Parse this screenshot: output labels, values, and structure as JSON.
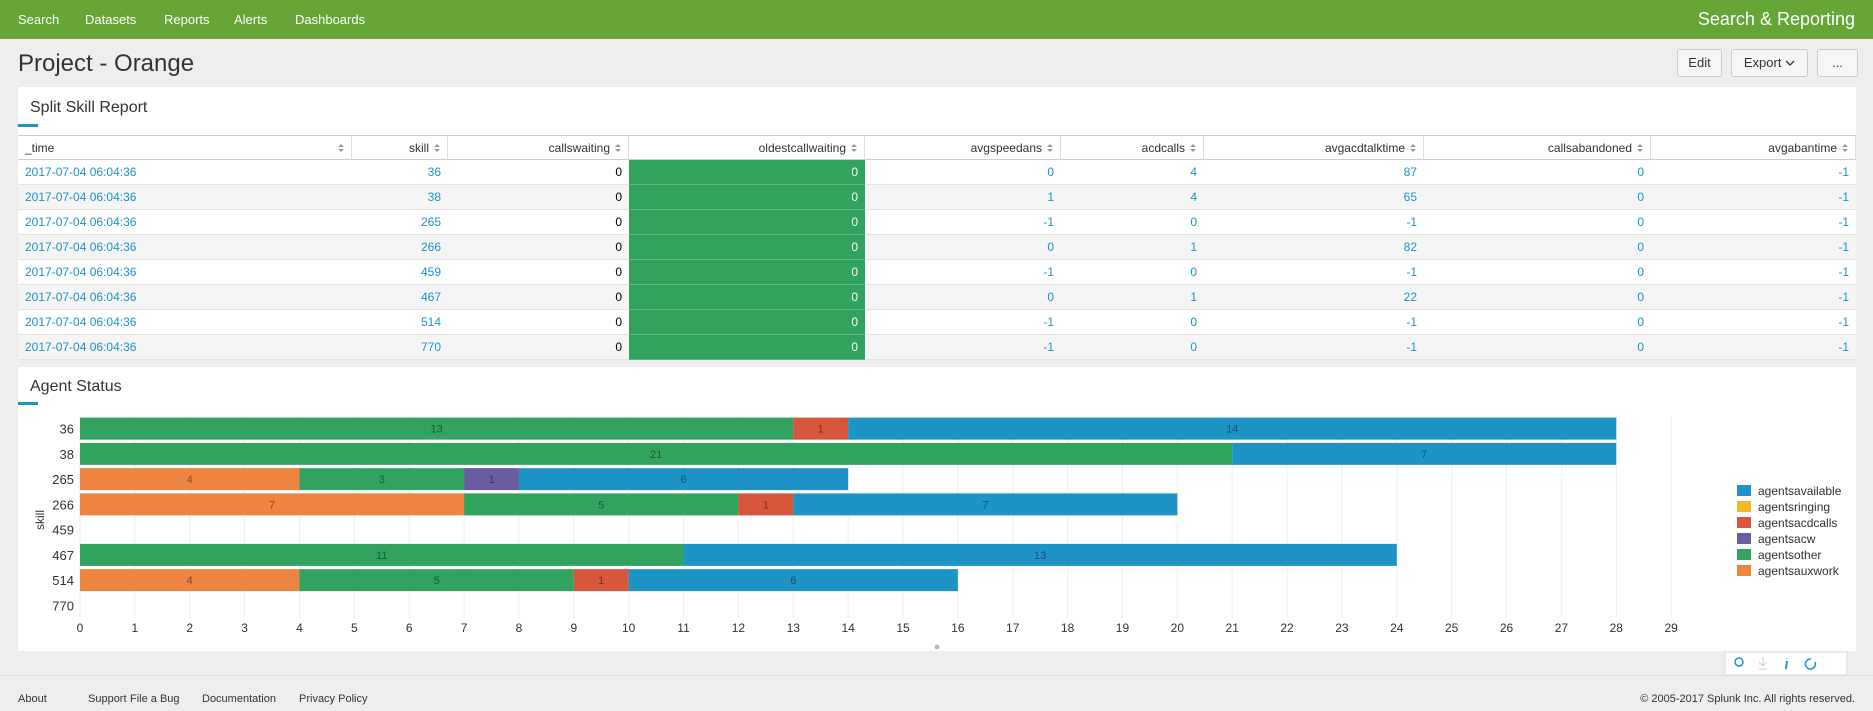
{
  "nav": {
    "items": [
      "Search",
      "Datasets",
      "Reports",
      "Alerts",
      "Dashboards"
    ],
    "app_title": "Search & Reporting"
  },
  "page": {
    "title": "Project - Orange",
    "buttons": [
      "Edit",
      "Export",
      "..."
    ]
  },
  "table_panel": {
    "title": "Split Skill Report",
    "columns": [
      "_time",
      "skill",
      "callswaiting",
      "oldestcallwaiting",
      "avgspeedans",
      "acdcalls",
      "avgacdtalktime",
      "callsabandoned",
      "avgabantime"
    ],
    "rows": [
      [
        "2017-07-04 06:04:36",
        36,
        0,
        0,
        0,
        4,
        87,
        0,
        -1
      ],
      [
        "2017-07-04 06:04:36",
        38,
        0,
        0,
        1,
        4,
        65,
        0,
        -1
      ],
      [
        "2017-07-04 06:04:36",
        265,
        0,
        0,
        -1,
        0,
        -1,
        0,
        -1
      ],
      [
        "2017-07-04 06:04:36",
        266,
        0,
        0,
        0,
        1,
        82,
        0,
        -1
      ],
      [
        "2017-07-04 06:04:36",
        459,
        0,
        0,
        -1,
        0,
        -1,
        0,
        -1
      ],
      [
        "2017-07-04 06:04:36",
        467,
        0,
        0,
        0,
        1,
        22,
        0,
        -1
      ],
      [
        "2017-07-04 06:04:36",
        514,
        0,
        0,
        -1,
        0,
        -1,
        0,
        -1
      ],
      [
        "2017-07-04 06:04:36",
        770,
        0,
        0,
        -1,
        0,
        -1,
        0,
        -1
      ]
    ]
  },
  "chart_panel": {
    "title": "Agent Status"
  },
  "chart_data": {
    "type": "stacked-bar-horizontal",
    "y_label": "skill",
    "categories": [
      "36",
      "38",
      "265",
      "266",
      "459",
      "467",
      "514",
      "770"
    ],
    "series": [
      {
        "name": "agentsavailable",
        "color": "#1e93c6",
        "values": [
          14,
          7,
          6,
          7,
          null,
          13,
          6,
          null
        ]
      },
      {
        "name": "agentsringing",
        "color": "#f2b827",
        "values": [
          null,
          null,
          null,
          null,
          null,
          null,
          null,
          null
        ]
      },
      {
        "name": "agentsacdcalls",
        "color": "#d6563c",
        "values": [
          1,
          null,
          null,
          1,
          null,
          null,
          1,
          null
        ]
      },
      {
        "name": "agentsacw",
        "color": "#6a5c9e",
        "values": [
          null,
          null,
          1,
          null,
          null,
          null,
          null,
          null
        ]
      },
      {
        "name": "agentsother",
        "color": "#31a35f",
        "values": [
          13,
          21,
          3,
          5,
          null,
          11,
          5,
          null
        ]
      },
      {
        "name": "agentsauxwork",
        "color": "#ed8440",
        "values": [
          null,
          null,
          4,
          7,
          null,
          null,
          4,
          null
        ]
      }
    ],
    "xlim": [
      0,
      30
    ],
    "xticks": [
      0,
      1,
      2,
      3,
      4,
      5,
      6,
      7,
      8,
      9,
      10,
      11,
      12,
      13,
      14,
      15,
      16,
      17,
      18,
      19,
      20,
      21,
      22,
      23,
      24,
      25,
      26,
      27,
      28,
      29
    ],
    "grid": true,
    "legend": "right"
  },
  "footer": {
    "links": [
      "About",
      "Support",
      "File a Bug",
      "Documentation",
      "Privacy Policy"
    ],
    "copyright": "© 2005-2017 Splunk Inc. All rights reserved."
  }
}
